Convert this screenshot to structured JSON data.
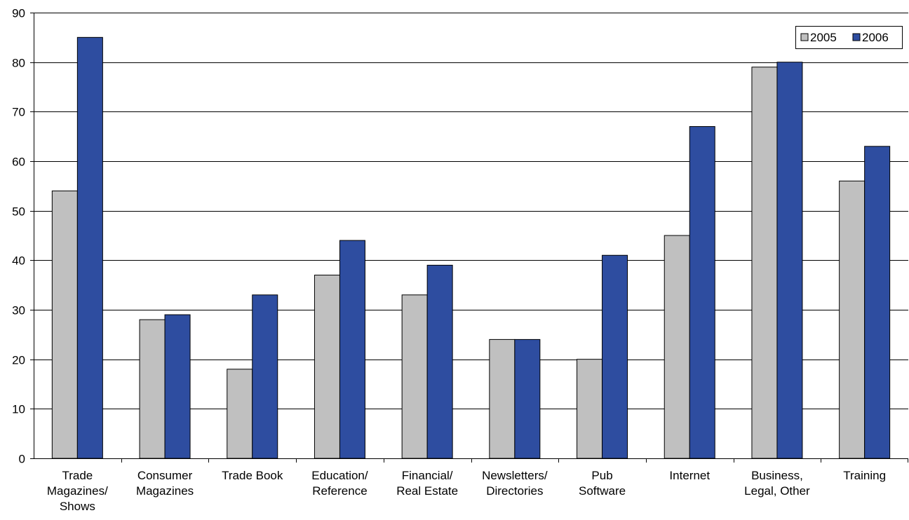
{
  "chart_data": {
    "type": "bar",
    "categories": [
      [
        "Trade",
        "Magazines/",
        "Shows"
      ],
      [
        "Consumer",
        "Magazines"
      ],
      [
        "Trade Book"
      ],
      [
        "Education/",
        "Reference"
      ],
      [
        "Financial/",
        "Real Estate"
      ],
      [
        "Newsletters/",
        "Directories"
      ],
      [
        "Pub",
        "Software"
      ],
      [
        "Internet"
      ],
      [
        "Business,",
        "Legal, Other"
      ],
      [
        "Training"
      ]
    ],
    "series": [
      {
        "name": "2005",
        "color": "#c0c0c0",
        "values": [
          54,
          28,
          18,
          37,
          33,
          24,
          20,
          45,
          79,
          56
        ]
      },
      {
        "name": "2006",
        "color": "#2e4da0",
        "values": [
          85,
          29,
          33,
          44,
          39,
          24,
          41,
          67,
          80,
          63
        ]
      }
    ],
    "ylim": [
      0,
      90
    ],
    "yticks": [
      0,
      10,
      20,
      30,
      40,
      50,
      60,
      70,
      80,
      90
    ],
    "grid": true,
    "legend_position": "top-right",
    "title": "",
    "xlabel": "",
    "ylabel": ""
  }
}
